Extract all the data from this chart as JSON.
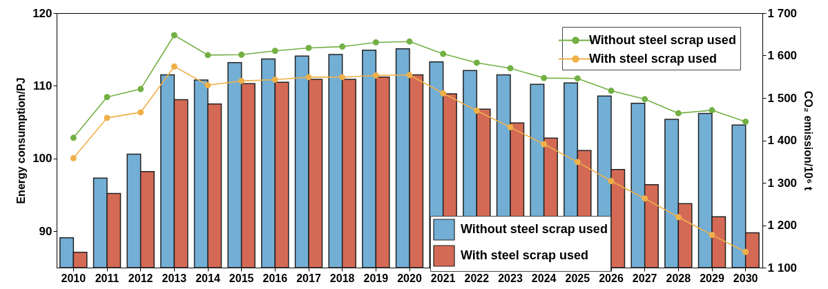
{
  "chart_data": {
    "type": "bar",
    "categories": [
      "2010",
      "2011",
      "2012",
      "2013",
      "2014",
      "2015",
      "2016",
      "2017",
      "2018",
      "2019",
      "2020",
      "2021",
      "2022",
      "2023",
      "2024",
      "2025",
      "2026",
      "2027",
      "2028",
      "2029",
      "2030"
    ],
    "series": [
      {
        "name": "Without steel scrap used",
        "color": "#73aed5",
        "values": [
          89.1,
          97.3,
          100.6,
          111.5,
          110.8,
          113.2,
          113.7,
          114.1,
          114.3,
          114.9,
          115.1,
          113.3,
          112.1,
          111.5,
          110.2,
          110.4,
          108.6,
          107.6,
          105.4,
          106.2,
          104.6
        ]
      },
      {
        "name": "With steel scrap used",
        "color": "#d46a55",
        "values": [
          87.1,
          95.2,
          98.2,
          108.1,
          107.5,
          110.3,
          110.5,
          110.9,
          110.9,
          111.2,
          111.5,
          108.9,
          106.8,
          104.9,
          102.8,
          101.1,
          98.5,
          96.4,
          93.8,
          92.0,
          89.8
        ]
      },
      {
        "name": "Without steel scrap used",
        "type": "line",
        "axis": "y2",
        "color": "#72b043",
        "values": [
          1406,
          1502,
          1521,
          1648,
          1601,
          1602,
          1611,
          1618,
          1621,
          1631,
          1633,
          1604,
          1583,
          1570,
          1547,
          1546,
          1517,
          1497,
          1464,
          1471,
          1444
        ]
      },
      {
        "name": "With steel scrap used",
        "type": "line",
        "axis": "y2",
        "color": "#efb04a",
        "values": [
          1358,
          1453,
          1466,
          1574,
          1530,
          1540,
          1543,
          1549,
          1549,
          1553,
          1554,
          1511,
          1470,
          1431,
          1391,
          1349,
          1304,
          1263,
          1219,
          1177,
          1137
        ]
      }
    ],
    "ylabel": "Energy consumption/PJ",
    "y2label": "CO₂ emission/10⁶ t",
    "ylim": [
      85,
      120
    ],
    "yticks": [
      90,
      100,
      110,
      120
    ],
    "y2lim": [
      1100,
      1700
    ],
    "y2ticks": [
      {
        "value": 1100,
        "label": "1 100"
      },
      {
        "value": 1200,
        "label": "1 200"
      },
      {
        "value": 1300,
        "label": "1 300"
      },
      {
        "value": 1400,
        "label": "1 400"
      },
      {
        "value": 1500,
        "label": "1 500"
      },
      {
        "value": 1600,
        "label": "1 600"
      },
      {
        "value": 1700,
        "label": "1 700"
      }
    ],
    "marker": "circle",
    "legend": "right",
    "grid": false
  }
}
